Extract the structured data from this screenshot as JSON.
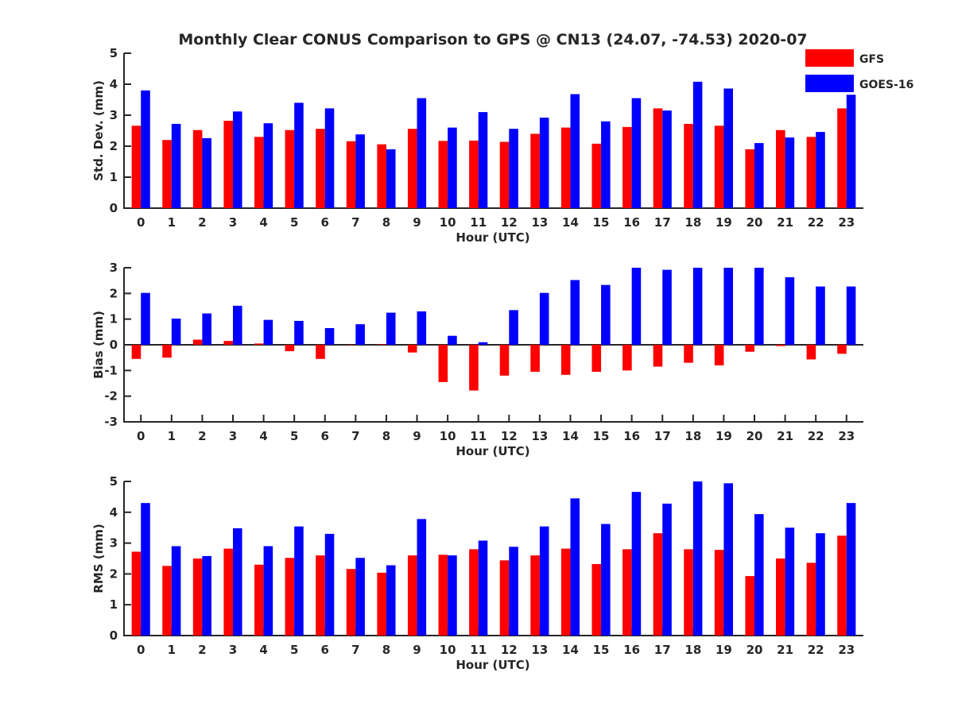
{
  "figure_title": "Monthly Clear CONUS Comparison to GPS @ CN13 (24.07, -74.53) 2020-07",
  "legend": {
    "items": [
      {
        "name": "GFS",
        "color": "#ff0000"
      },
      {
        "name": "GOES-16",
        "color": "#0000ff"
      }
    ]
  },
  "chart_data": [
    {
      "type": "bar",
      "title": "Monthly Clear CONUS Comparison to GPS @ CN13 (24.07, -74.53) 2020-07",
      "xlabel": "Hour (UTC)",
      "ylabel": "Std. Dev. (mm)",
      "ylim": [
        0,
        5
      ],
      "yticks": [
        0,
        1,
        2,
        3,
        4,
        5
      ],
      "categories": [
        "0",
        "1",
        "2",
        "3",
        "4",
        "5",
        "6",
        "7",
        "8",
        "9",
        "10",
        "11",
        "12",
        "13",
        "14",
        "15",
        "16",
        "17",
        "18",
        "19",
        "20",
        "21",
        "22",
        "23"
      ],
      "series": [
        {
          "name": "GFS",
          "color": "#ff0000",
          "values": [
            2.66,
            2.2,
            2.52,
            2.82,
            2.3,
            2.52,
            2.56,
            2.16,
            2.06,
            2.56,
            2.17,
            2.18,
            2.14,
            2.4,
            2.6,
            2.08,
            2.62,
            3.22,
            2.72,
            2.66,
            1.9,
            2.52,
            2.3,
            3.22
          ]
        },
        {
          "name": "GOES-16",
          "color": "#0000ff",
          "values": [
            3.8,
            2.72,
            2.26,
            3.12,
            2.74,
            3.4,
            3.22,
            2.38,
            1.9,
            3.55,
            2.6,
            3.1,
            2.56,
            2.92,
            3.68,
            2.8,
            3.55,
            3.15,
            4.08,
            3.86,
            2.1,
            2.28,
            2.46,
            3.66
          ]
        }
      ]
    },
    {
      "type": "bar",
      "title": "",
      "xlabel": "Hour (UTC)",
      "ylabel": "Bias (mm)",
      "ylim": [
        -3,
        3
      ],
      "yticks": [
        -3,
        -2,
        -1,
        0,
        1,
        2,
        3
      ],
      "categories": [
        "0",
        "1",
        "2",
        "3",
        "4",
        "5",
        "6",
        "7",
        "8",
        "9",
        "10",
        "11",
        "12",
        "13",
        "14",
        "15",
        "16",
        "17",
        "18",
        "19",
        "20",
        "21",
        "22",
        "23"
      ],
      "series": [
        {
          "name": "GFS",
          "color": "#ff0000",
          "values": [
            -0.55,
            -0.5,
            0.2,
            0.15,
            0.05,
            -0.25,
            -0.55,
            0.0,
            0.02,
            -0.3,
            -1.45,
            -1.78,
            -1.2,
            -1.05,
            -1.17,
            -1.05,
            -1.0,
            -0.85,
            -0.7,
            -0.8,
            -0.27,
            -0.05,
            -0.57,
            -0.35
          ]
        },
        {
          "name": "GOES-16",
          "color": "#0000ff",
          "values": [
            2.02,
            1.02,
            1.22,
            1.52,
            0.97,
            0.93,
            0.65,
            0.8,
            1.25,
            1.3,
            0.35,
            0.1,
            1.35,
            2.02,
            2.52,
            2.33,
            3.0,
            2.92,
            3.0,
            3.0,
            3.0,
            2.63,
            2.27,
            2.27
          ]
        }
      ]
    },
    {
      "type": "bar",
      "title": "",
      "xlabel": "Hour (UTC)",
      "ylabel": "RMS (mm)",
      "ylim": [
        0,
        5
      ],
      "yticks": [
        0,
        1,
        2,
        3,
        4,
        5
      ],
      "categories": [
        "0",
        "1",
        "2",
        "3",
        "4",
        "5",
        "6",
        "7",
        "8",
        "9",
        "10",
        "11",
        "12",
        "13",
        "14",
        "15",
        "16",
        "17",
        "18",
        "19",
        "20",
        "21",
        "22",
        "23"
      ],
      "series": [
        {
          "name": "GFS",
          "color": "#ff0000",
          "values": [
            2.72,
            2.26,
            2.5,
            2.82,
            2.3,
            2.52,
            2.6,
            2.16,
            2.04,
            2.6,
            2.62,
            2.8,
            2.44,
            2.6,
            2.82,
            2.32,
            2.8,
            3.32,
            2.8,
            2.78,
            1.93,
            2.5,
            2.36,
            3.24
          ]
        },
        {
          "name": "GOES-16",
          "color": "#0000ff",
          "values": [
            4.3,
            2.9,
            2.58,
            3.48,
            2.9,
            3.54,
            3.3,
            2.52,
            2.28,
            3.78,
            2.6,
            3.08,
            2.88,
            3.54,
            4.45,
            3.62,
            4.66,
            4.28,
            5.0,
            4.94,
            3.94,
            3.5,
            3.32,
            4.3
          ]
        }
      ]
    }
  ]
}
